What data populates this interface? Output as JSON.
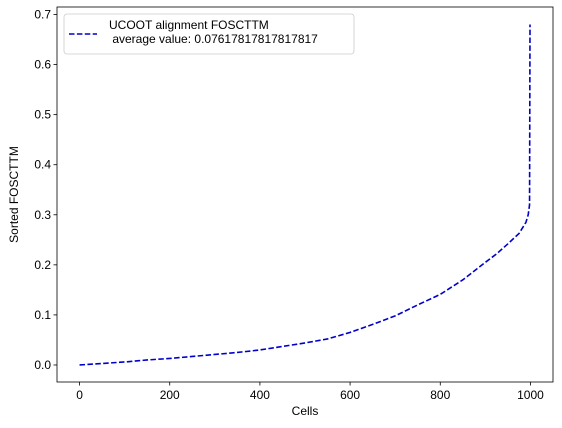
{
  "chart_data": {
    "type": "line",
    "title": "",
    "xlabel": "Cells",
    "ylabel": "Sorted FOSCTTM",
    "xlim": [
      -50,
      1050
    ],
    "ylim": [
      -0.034,
      0.715
    ],
    "xticks": [
      0,
      200,
      400,
      600,
      800,
      1000
    ],
    "xtick_labels": [
      "0",
      "200",
      "400",
      "600",
      "800",
      "1000"
    ],
    "yticks": [
      0.0,
      0.1,
      0.2,
      0.3,
      0.4,
      0.5,
      0.6,
      0.7
    ],
    "ytick_labels": [
      "0.0",
      "0.1",
      "0.2",
      "0.3",
      "0.4",
      "0.5",
      "0.6",
      "0.7"
    ],
    "grid": false,
    "legend_position": "top-left",
    "series": [
      {
        "name": "UCOOT alignment FOSCTTM\n average value: 0.07617817817817817",
        "color": "#0000cc",
        "linestyle": "dashed",
        "x": [
          0,
          50,
          100,
          150,
          200,
          250,
          300,
          350,
          400,
          450,
          500,
          550,
          600,
          650,
          700,
          750,
          800,
          850,
          900,
          925,
          950,
          975,
          990,
          995,
          998,
          999
        ],
        "y": [
          0.0,
          0.003,
          0.006,
          0.01,
          0.013,
          0.017,
          0.021,
          0.025,
          0.03,
          0.037,
          0.044,
          0.052,
          0.065,
          0.081,
          0.098,
          0.12,
          0.141,
          0.17,
          0.205,
          0.222,
          0.242,
          0.263,
          0.285,
          0.3,
          0.32,
          0.68
        ]
      }
    ]
  }
}
